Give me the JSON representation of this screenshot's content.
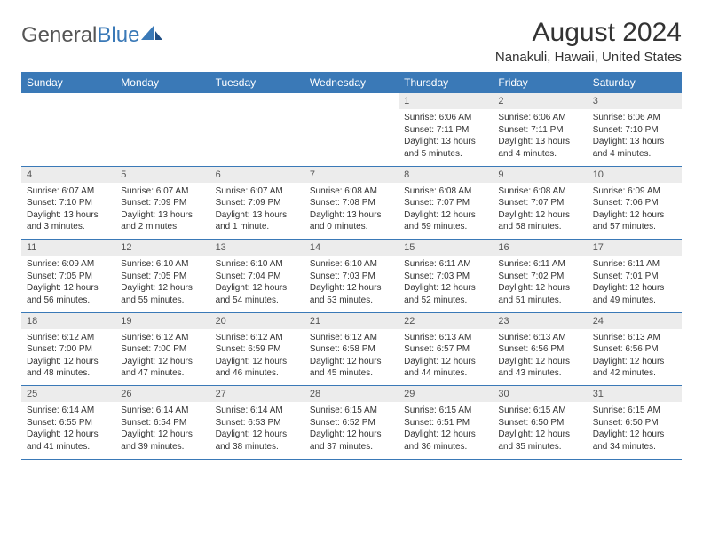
{
  "logo": {
    "textGray": "General",
    "textBlue": "Blue"
  },
  "title": "August 2024",
  "location": "Nanakuli, Hawaii, United States",
  "colors": {
    "headerBg": "#3a79b7",
    "headerText": "#ffffff",
    "dayNumBg": "#ececec",
    "borderColor": "#3a79b7",
    "bodyText": "#333333"
  },
  "dayHeaders": [
    "Sunday",
    "Monday",
    "Tuesday",
    "Wednesday",
    "Thursday",
    "Friday",
    "Saturday"
  ],
  "weeks": [
    [
      null,
      null,
      null,
      null,
      {
        "n": "1",
        "sr": "Sunrise: 6:06 AM",
        "ss": "Sunset: 7:11 PM",
        "dl": "Daylight: 13 hours and 5 minutes."
      },
      {
        "n": "2",
        "sr": "Sunrise: 6:06 AM",
        "ss": "Sunset: 7:11 PM",
        "dl": "Daylight: 13 hours and 4 minutes."
      },
      {
        "n": "3",
        "sr": "Sunrise: 6:06 AM",
        "ss": "Sunset: 7:10 PM",
        "dl": "Daylight: 13 hours and 4 minutes."
      }
    ],
    [
      {
        "n": "4",
        "sr": "Sunrise: 6:07 AM",
        "ss": "Sunset: 7:10 PM",
        "dl": "Daylight: 13 hours and 3 minutes."
      },
      {
        "n": "5",
        "sr": "Sunrise: 6:07 AM",
        "ss": "Sunset: 7:09 PM",
        "dl": "Daylight: 13 hours and 2 minutes."
      },
      {
        "n": "6",
        "sr": "Sunrise: 6:07 AM",
        "ss": "Sunset: 7:09 PM",
        "dl": "Daylight: 13 hours and 1 minute."
      },
      {
        "n": "7",
        "sr": "Sunrise: 6:08 AM",
        "ss": "Sunset: 7:08 PM",
        "dl": "Daylight: 13 hours and 0 minutes."
      },
      {
        "n": "8",
        "sr": "Sunrise: 6:08 AM",
        "ss": "Sunset: 7:07 PM",
        "dl": "Daylight: 12 hours and 59 minutes."
      },
      {
        "n": "9",
        "sr": "Sunrise: 6:08 AM",
        "ss": "Sunset: 7:07 PM",
        "dl": "Daylight: 12 hours and 58 minutes."
      },
      {
        "n": "10",
        "sr": "Sunrise: 6:09 AM",
        "ss": "Sunset: 7:06 PM",
        "dl": "Daylight: 12 hours and 57 minutes."
      }
    ],
    [
      {
        "n": "11",
        "sr": "Sunrise: 6:09 AM",
        "ss": "Sunset: 7:05 PM",
        "dl": "Daylight: 12 hours and 56 minutes."
      },
      {
        "n": "12",
        "sr": "Sunrise: 6:10 AM",
        "ss": "Sunset: 7:05 PM",
        "dl": "Daylight: 12 hours and 55 minutes."
      },
      {
        "n": "13",
        "sr": "Sunrise: 6:10 AM",
        "ss": "Sunset: 7:04 PM",
        "dl": "Daylight: 12 hours and 54 minutes."
      },
      {
        "n": "14",
        "sr": "Sunrise: 6:10 AM",
        "ss": "Sunset: 7:03 PM",
        "dl": "Daylight: 12 hours and 53 minutes."
      },
      {
        "n": "15",
        "sr": "Sunrise: 6:11 AM",
        "ss": "Sunset: 7:03 PM",
        "dl": "Daylight: 12 hours and 52 minutes."
      },
      {
        "n": "16",
        "sr": "Sunrise: 6:11 AM",
        "ss": "Sunset: 7:02 PM",
        "dl": "Daylight: 12 hours and 51 minutes."
      },
      {
        "n": "17",
        "sr": "Sunrise: 6:11 AM",
        "ss": "Sunset: 7:01 PM",
        "dl": "Daylight: 12 hours and 49 minutes."
      }
    ],
    [
      {
        "n": "18",
        "sr": "Sunrise: 6:12 AM",
        "ss": "Sunset: 7:00 PM",
        "dl": "Daylight: 12 hours and 48 minutes."
      },
      {
        "n": "19",
        "sr": "Sunrise: 6:12 AM",
        "ss": "Sunset: 7:00 PM",
        "dl": "Daylight: 12 hours and 47 minutes."
      },
      {
        "n": "20",
        "sr": "Sunrise: 6:12 AM",
        "ss": "Sunset: 6:59 PM",
        "dl": "Daylight: 12 hours and 46 minutes."
      },
      {
        "n": "21",
        "sr": "Sunrise: 6:12 AM",
        "ss": "Sunset: 6:58 PM",
        "dl": "Daylight: 12 hours and 45 minutes."
      },
      {
        "n": "22",
        "sr": "Sunrise: 6:13 AM",
        "ss": "Sunset: 6:57 PM",
        "dl": "Daylight: 12 hours and 44 minutes."
      },
      {
        "n": "23",
        "sr": "Sunrise: 6:13 AM",
        "ss": "Sunset: 6:56 PM",
        "dl": "Daylight: 12 hours and 43 minutes."
      },
      {
        "n": "24",
        "sr": "Sunrise: 6:13 AM",
        "ss": "Sunset: 6:56 PM",
        "dl": "Daylight: 12 hours and 42 minutes."
      }
    ],
    [
      {
        "n": "25",
        "sr": "Sunrise: 6:14 AM",
        "ss": "Sunset: 6:55 PM",
        "dl": "Daylight: 12 hours and 41 minutes."
      },
      {
        "n": "26",
        "sr": "Sunrise: 6:14 AM",
        "ss": "Sunset: 6:54 PM",
        "dl": "Daylight: 12 hours and 39 minutes."
      },
      {
        "n": "27",
        "sr": "Sunrise: 6:14 AM",
        "ss": "Sunset: 6:53 PM",
        "dl": "Daylight: 12 hours and 38 minutes."
      },
      {
        "n": "28",
        "sr": "Sunrise: 6:15 AM",
        "ss": "Sunset: 6:52 PM",
        "dl": "Daylight: 12 hours and 37 minutes."
      },
      {
        "n": "29",
        "sr": "Sunrise: 6:15 AM",
        "ss": "Sunset: 6:51 PM",
        "dl": "Daylight: 12 hours and 36 minutes."
      },
      {
        "n": "30",
        "sr": "Sunrise: 6:15 AM",
        "ss": "Sunset: 6:50 PM",
        "dl": "Daylight: 12 hours and 35 minutes."
      },
      {
        "n": "31",
        "sr": "Sunrise: 6:15 AM",
        "ss": "Sunset: 6:50 PM",
        "dl": "Daylight: 12 hours and 34 minutes."
      }
    ]
  ]
}
